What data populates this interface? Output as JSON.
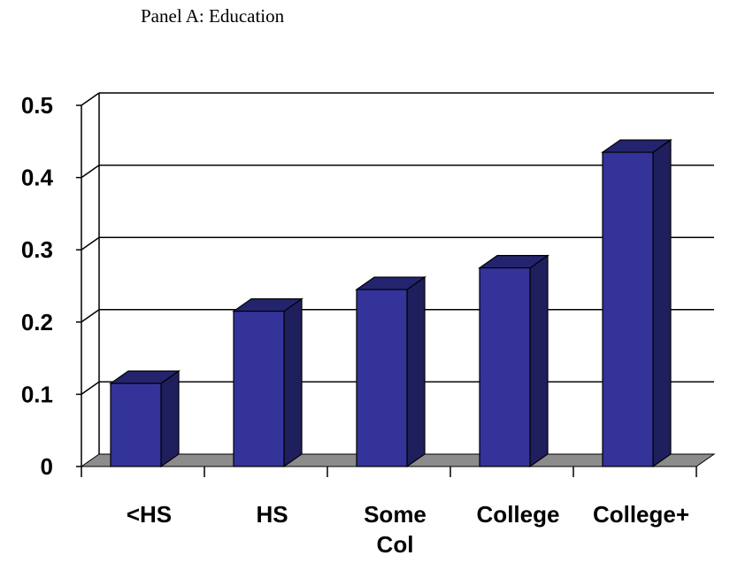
{
  "panel_title": "Panel A: Education",
  "colors": {
    "bar_front": "#333399",
    "bar_top": "#24246e",
    "bar_side": "#1f1f5e",
    "floor": "#8c8c8c",
    "grid": "#000000"
  },
  "chart_data": {
    "type": "bar",
    "title": "",
    "xlabel": "",
    "ylabel": "",
    "categories": [
      "<HS",
      "HS",
      "Some Col",
      "College",
      "College+"
    ],
    "category_label_lines": [
      [
        "<HS"
      ],
      [
        "HS"
      ],
      [
        "Some",
        "Col"
      ],
      [
        "College"
      ],
      [
        "College+"
      ]
    ],
    "values": [
      0.115,
      0.215,
      0.245,
      0.275,
      0.435
    ],
    "ylim": [
      0,
      0.5
    ],
    "yticks": [
      "0",
      "0.1",
      "0.2",
      "0.3",
      "0.4",
      "0.5"
    ],
    "grid": true,
    "style": "3d"
  }
}
